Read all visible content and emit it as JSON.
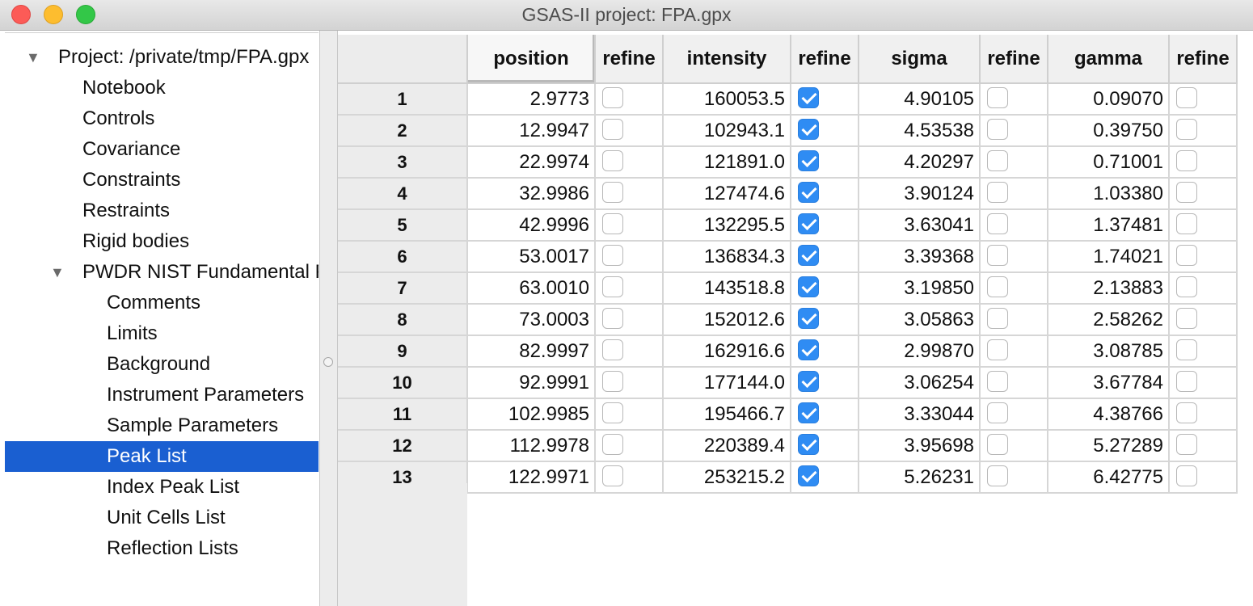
{
  "window": {
    "title": "GSAS-II project: FPA.gpx"
  },
  "tree": {
    "items": [
      {
        "label": "Project: /private/tmp/FPA.gpx",
        "level": 0,
        "expanded": true
      },
      {
        "label": "Notebook",
        "level": 1
      },
      {
        "label": "Controls",
        "level": 1
      },
      {
        "label": "Covariance",
        "level": 1
      },
      {
        "label": "Constraints",
        "level": 1
      },
      {
        "label": "Restraints",
        "level": 1
      },
      {
        "label": "Rigid bodies",
        "level": 1
      },
      {
        "label": "PWDR NIST Fundamental Parameters",
        "level": 1,
        "expanded": true
      },
      {
        "label": "Comments",
        "level": 2
      },
      {
        "label": "Limits",
        "level": 2
      },
      {
        "label": "Background",
        "level": 2
      },
      {
        "label": "Instrument Parameters",
        "level": 2
      },
      {
        "label": "Sample Parameters",
        "level": 2
      },
      {
        "label": "Peak List",
        "level": 2,
        "selected": true
      },
      {
        "label": "Index Peak List",
        "level": 2
      },
      {
        "label": "Unit Cells List",
        "level": 2
      },
      {
        "label": "Reflection Lists",
        "level": 2
      }
    ]
  },
  "peak_table": {
    "columns": [
      "position",
      "refine",
      "intensity",
      "refine",
      "sigma",
      "refine",
      "gamma",
      "refine"
    ],
    "rows": [
      {
        "n": "1",
        "position": "2.9773",
        "pos_refine": false,
        "intensity": "160053.5",
        "int_refine": true,
        "sigma": "4.90105",
        "sig_refine": false,
        "gamma": "0.09070",
        "gam_refine": false
      },
      {
        "n": "2",
        "position": "12.9947",
        "pos_refine": false,
        "intensity": "102943.1",
        "int_refine": true,
        "sigma": "4.53538",
        "sig_refine": false,
        "gamma": "0.39750",
        "gam_refine": false
      },
      {
        "n": "3",
        "position": "22.9974",
        "pos_refine": false,
        "intensity": "121891.0",
        "int_refine": true,
        "sigma": "4.20297",
        "sig_refine": false,
        "gamma": "0.71001",
        "gam_refine": false
      },
      {
        "n": "4",
        "position": "32.9986",
        "pos_refine": false,
        "intensity": "127474.6",
        "int_refine": true,
        "sigma": "3.90124",
        "sig_refine": false,
        "gamma": "1.03380",
        "gam_refine": false
      },
      {
        "n": "5",
        "position": "42.9996",
        "pos_refine": false,
        "intensity": "132295.5",
        "int_refine": true,
        "sigma": "3.63041",
        "sig_refine": false,
        "gamma": "1.37481",
        "gam_refine": false
      },
      {
        "n": "6",
        "position": "53.0017",
        "pos_refine": false,
        "intensity": "136834.3",
        "int_refine": true,
        "sigma": "3.39368",
        "sig_refine": false,
        "gamma": "1.74021",
        "gam_refine": false
      },
      {
        "n": "7",
        "position": "63.0010",
        "pos_refine": false,
        "intensity": "143518.8",
        "int_refine": true,
        "sigma": "3.19850",
        "sig_refine": false,
        "gamma": "2.13883",
        "gam_refine": false
      },
      {
        "n": "8",
        "position": "73.0003",
        "pos_refine": false,
        "intensity": "152012.6",
        "int_refine": true,
        "sigma": "3.05863",
        "sig_refine": false,
        "gamma": "2.58262",
        "gam_refine": false
      },
      {
        "n": "9",
        "position": "82.9997",
        "pos_refine": false,
        "intensity": "162916.6",
        "int_refine": true,
        "sigma": "2.99870",
        "sig_refine": false,
        "gamma": "3.08785",
        "gam_refine": false
      },
      {
        "n": "10",
        "position": "92.9991",
        "pos_refine": false,
        "intensity": "177144.0",
        "int_refine": true,
        "sigma": "3.06254",
        "sig_refine": false,
        "gamma": "3.67784",
        "gam_refine": false
      },
      {
        "n": "11",
        "position": "102.9985",
        "pos_refine": false,
        "intensity": "195466.7",
        "int_refine": true,
        "sigma": "3.33044",
        "sig_refine": false,
        "gamma": "4.38766",
        "gam_refine": false
      },
      {
        "n": "12",
        "position": "112.9978",
        "pos_refine": false,
        "intensity": "220389.4",
        "int_refine": true,
        "sigma": "3.95698",
        "sig_refine": false,
        "gamma": "5.27289",
        "gam_refine": false
      },
      {
        "n": "13",
        "position": "122.9971",
        "pos_refine": false,
        "intensity": "253215.2",
        "int_refine": true,
        "sigma": "5.26231",
        "sig_refine": false,
        "gamma": "6.42775",
        "gam_refine": false
      }
    ]
  },
  "colors": {
    "selection": "#1a5fd1",
    "checkbox_checked": "#2f8cf3",
    "close": "#fc5b57",
    "minimize": "#fdbd2f",
    "zoom": "#33c748"
  }
}
